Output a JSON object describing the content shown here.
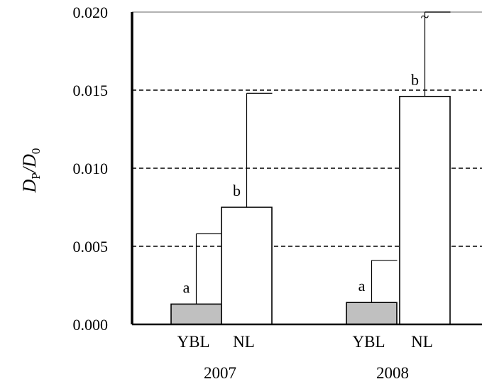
{
  "chart_data": {
    "type": "bar",
    "ylabel_main": "D",
    "ylabel_sub1": "P",
    "ylabel_sep": "/D",
    "ylabel_sub2": "0",
    "ylim": [
      0,
      0.02
    ],
    "yticks": [
      "0.000",
      "0.005",
      "0.010",
      "0.015",
      "0.020"
    ],
    "grid": "dashed horizontal",
    "groups": [
      "2007",
      "2008"
    ],
    "bars": [
      {
        "group": "2007",
        "category": "YBL",
        "value": 0.0013,
        "error_upper": 0.0058,
        "sig": "a",
        "fill": "#c0c0c0"
      },
      {
        "group": "2007",
        "category": "NL",
        "value": 0.0075,
        "error_upper": 0.0148,
        "sig": "b",
        "fill": "#ffffff"
      },
      {
        "group": "2008",
        "category": "YBL",
        "value": 0.0014,
        "error_upper": 0.0041,
        "sig": "a",
        "fill": "#c0c0c0"
      },
      {
        "group": "2008",
        "category": "NL",
        "value": 0.0146,
        "error_upper": 0.02,
        "sig": "b",
        "fill": "#ffffff",
        "break_mark": "~"
      }
    ]
  }
}
